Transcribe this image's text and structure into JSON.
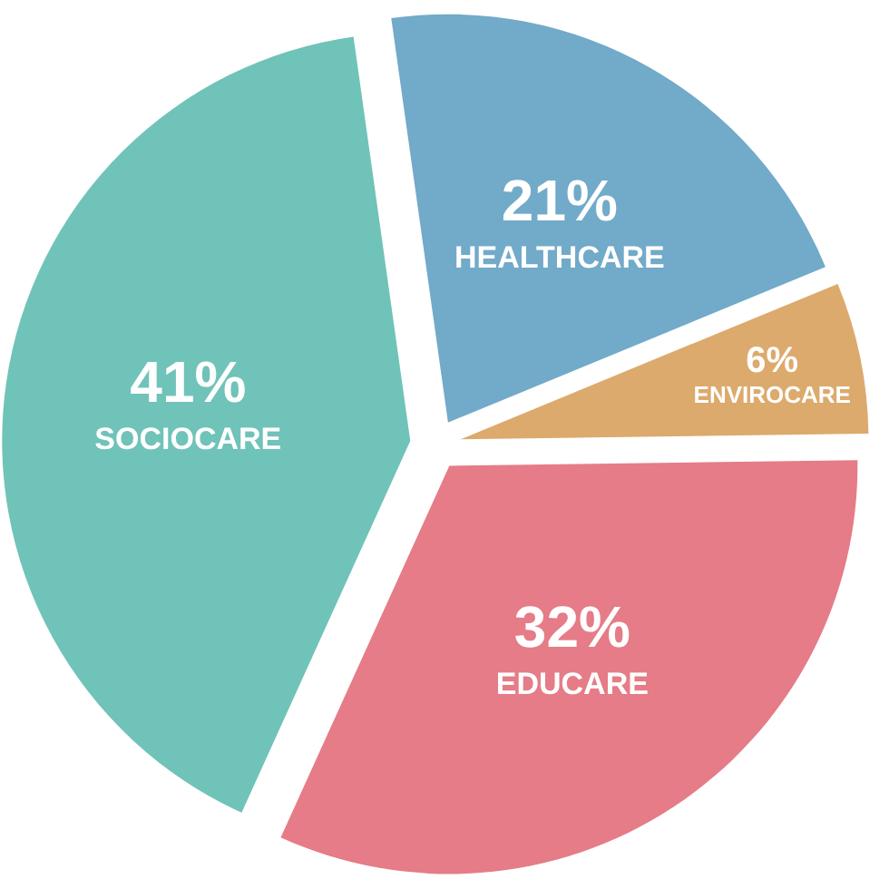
{
  "chart_data": {
    "type": "pie",
    "categories": [
      "HEALTHCARE",
      "ENVIROCARE",
      "EDUCARE",
      "SOCIOCARE"
    ],
    "values": [
      21,
      6,
      32,
      41
    ],
    "value_labels": [
      "21%",
      "6%",
      "32%",
      "41%"
    ],
    "colors": [
      "#72aac9",
      "#dcaa6c",
      "#e57c87",
      "#70c3b8"
    ]
  }
}
